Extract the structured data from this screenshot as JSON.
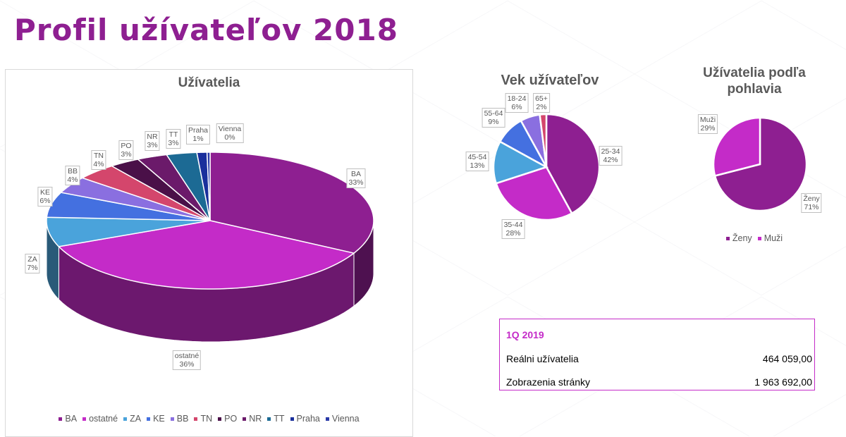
{
  "page_title": "Profil užívateľov 2018",
  "chart_data": [
    {
      "type": "pie",
      "style": "3d",
      "title": "Užívatelia",
      "legend_position": "bottom",
      "categories": [
        "BA",
        "ostatné",
        "ZA",
        "KE",
        "BB",
        "TN",
        "PO",
        "NR",
        "TT",
        "Praha",
        "Vienna"
      ],
      "values": [
        33,
        36,
        7,
        6,
        4,
        4,
        3,
        3,
        3,
        1,
        0.3
      ],
      "labels": [
        "33%",
        "36%",
        "7%",
        "6%",
        "4%",
        "4%",
        "3%",
        "3%",
        "3%",
        "1%",
        "0%"
      ],
      "colors": [
        "#8e1f91",
        "#c42bc8",
        "#4aa3db",
        "#4470e0",
        "#8a6fe0",
        "#d4466c",
        "#4a1048",
        "#6b1a6a",
        "#1c6a94",
        "#1a2f9c",
        "#2a3aa8"
      ]
    },
    {
      "type": "pie",
      "title": "Vek užívateľov",
      "categories": [
        "25-34",
        "35-44",
        "45-54",
        "55-64",
        "18-24",
        "65+"
      ],
      "values": [
        42,
        28,
        13,
        9,
        6,
        2
      ],
      "labels": [
        "42%",
        "28%",
        "13%",
        "9%",
        "6%",
        "2%"
      ],
      "colors": [
        "#8e1f91",
        "#c42bc8",
        "#4aa3db",
        "#4470e0",
        "#8a6fe0",
        "#d4466c"
      ]
    },
    {
      "type": "pie",
      "title": "Užívatelia podľa pohlavia",
      "legend_position": "bottom",
      "categories": [
        "Ženy",
        "Muži"
      ],
      "values": [
        71,
        29
      ],
      "labels": [
        "71%",
        "29%"
      ],
      "colors": [
        "#8e1f91",
        "#c42bc8"
      ]
    }
  ],
  "table": {
    "header": "1Q 2019",
    "rows": [
      {
        "label": "Reálni užívatelia",
        "value": "464 059,00"
      },
      {
        "label": "Zobrazenia stránky",
        "value": "1 963 692,00"
      }
    ]
  }
}
